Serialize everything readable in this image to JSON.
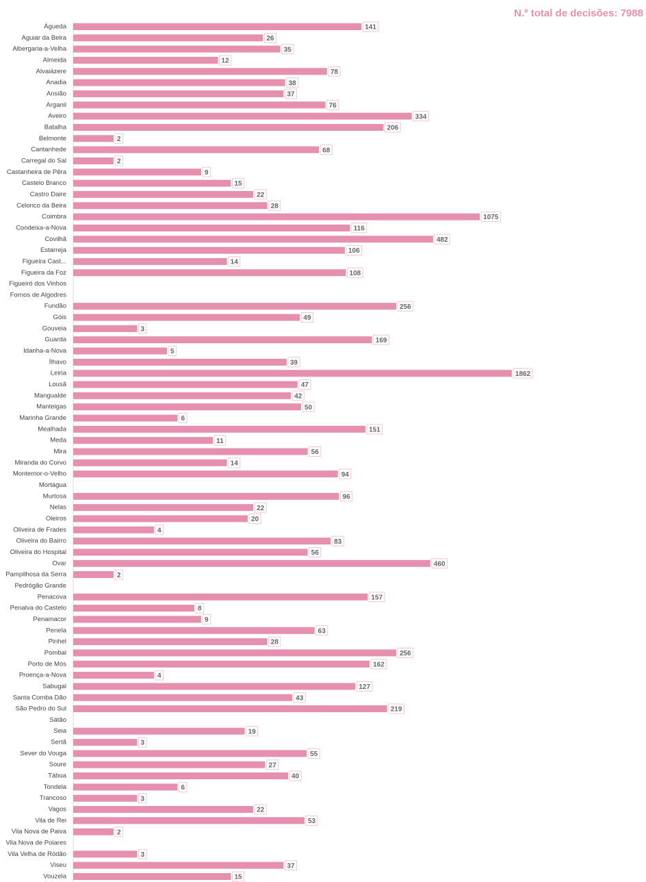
{
  "chart_data": {
    "type": "bar",
    "orientation": "horizontal",
    "title": "N.º total de decisões: 7988",
    "color": "#e68fae",
    "log": true,
    "xlim": [
      1,
      10000
    ],
    "categories": [
      "Águeda",
      "Aguiar da Beira",
      "Albergaria-a-Velha",
      "Almeida",
      "Alvaiázere",
      "Anadia",
      "Ansião",
      "Arganil",
      "Aveiro",
      "Batalha",
      "Belmonte",
      "Cantanhede",
      "Carregal do Sal",
      "Castanheira de Pêra",
      "Castelo Branco",
      "Castro Daire",
      "Celorico da Beira",
      "Coimbra",
      "Condeixa-a-Nova",
      "Covilhã",
      "Estarreja",
      "Figueira Cast...",
      "Figueira da Foz",
      "Figueiró dos Vinhos",
      "Fornos de Algodres",
      "Fundão",
      "Góis",
      "Gouveia",
      "Guarda",
      "Idanha-a-Nova",
      "Ílhavo",
      "Leiria",
      "Lousã",
      "Mangualde",
      "Manteigas",
      "Marinha Grande",
      "Mealhada",
      "Meda",
      "Mira",
      "Miranda do Corvo",
      "Montemor-o-Velho",
      "Mortágua",
      "Murtosa",
      "Nelas",
      "Oleiros",
      "Oliveira de Frades",
      "Oliveira do Bairro",
      "Oliveira do Hospital",
      "Ovar",
      "Pampilhosa da Serra",
      "Pedrógão Grande",
      "Penacova",
      "Penalva do Castelo",
      "Penamacor",
      "Penela",
      "Pinhel",
      "Pombal",
      "Porto de Mós",
      "Proença-a-Nova",
      "Sabugal",
      "Santa Comba Dão",
      "São Pedro do Sul",
      "Sátão",
      "Seia",
      "Sertã",
      "Sever do Vouga",
      "Soure",
      "Tábua",
      "Tondela",
      "Trancoso",
      "Vagos",
      "Vila de Rei",
      "Vila Nova de Paiva",
      "Vila Nova de Poiares",
      "Vila Velha de Ródão",
      "Viseu",
      "Vouzela"
    ],
    "values": [
      141,
      26,
      35,
      12,
      78,
      38,
      37,
      76,
      334,
      206,
      2,
      68,
      2,
      9,
      15,
      22,
      28,
      1075,
      116,
      482,
      106,
      14,
      108,
      null,
      null,
      256,
      49,
      3,
      169,
      5,
      39,
      1862,
      47,
      42,
      50,
      6,
      151,
      11,
      56,
      14,
      94,
      null,
      96,
      22,
      20,
      4,
      83,
      56,
      460,
      2,
      null,
      157,
      8,
      9,
      63,
      28,
      256,
      162,
      4,
      127,
      43,
      219,
      null,
      19,
      3,
      55,
      27,
      40,
      6,
      3,
      22,
      53,
      2,
      null,
      3,
      37,
      15
    ]
  }
}
